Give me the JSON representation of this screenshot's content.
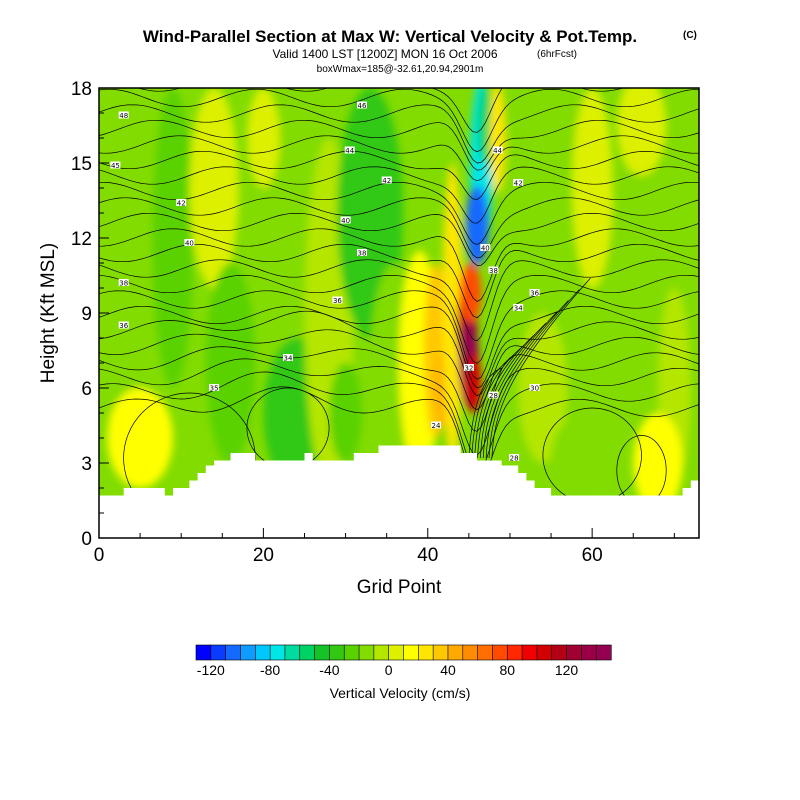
{
  "chart_data": {
    "type": "heatmap",
    "title": "Wind-Parallel Section at Max W: Vertical Velocity & Pot.Temp.",
    "copyright_mark": "(C)",
    "subtitle": "Valid 1400 LST [1200Z] MON 16 Oct 2006",
    "forecast_note": "(6hrFcst)",
    "subtitle2": "boxWmax=185@-32.61,20.94,2901m",
    "xlabel": "Grid Point",
    "ylabel": "Height (Kft MSL)",
    "xlim": [
      0,
      73
    ],
    "ylim": [
      0,
      18
    ],
    "x_ticks": [
      "0",
      "20",
      "40",
      "60"
    ],
    "x_tick_values": [
      0,
      20,
      40,
      60
    ],
    "y_ticks": [
      "0",
      "3",
      "6",
      "9",
      "12",
      "15",
      "18"
    ],
    "y_tick_values": [
      0,
      3,
      6,
      9,
      12,
      15,
      18
    ],
    "colorbar": {
      "label": "Vertical Velocity (cm/s)",
      "ticks": [
        "-120",
        "-80",
        "-40",
        "0",
        "40",
        "80",
        "120"
      ],
      "tick_values": [
        -120,
        -80,
        -40,
        0,
        40,
        80,
        120
      ],
      "range": [
        -130,
        150
      ],
      "step": 10,
      "colors": [
        "#0000ff",
        "#0a3cff",
        "#1469ff",
        "#0f9bff",
        "#00c8ff",
        "#00e6e6",
        "#00dca0",
        "#00d264",
        "#14c328",
        "#32c814",
        "#5ad200",
        "#82dc00",
        "#b4e600",
        "#dcf000",
        "#ffff00",
        "#ffe600",
        "#ffc800",
        "#ffaa00",
        "#ff8c00",
        "#ff6e00",
        "#ff4b00",
        "#ff2800",
        "#f00000",
        "#d20000",
        "#b40014",
        "#a00032",
        "#9b0046",
        "#960050"
      ]
    },
    "terrain_kft": [
      1.7,
      1.7,
      1.7,
      2.0,
      2.0,
      2.0,
      2.0,
      2.0,
      1.7,
      2.0,
      2.0,
      2.3,
      2.6,
      2.9,
      3.1,
      3.1,
      3.4,
      3.4,
      3.4,
      3.1,
      3.1,
      3.1,
      3.1,
      3.1,
      3.1,
      3.4,
      3.1,
      3.1,
      3.1,
      3.1,
      3.1,
      3.4,
      3.4,
      3.4,
      3.7,
      3.7,
      3.7,
      3.7,
      3.7,
      3.7,
      3.7,
      3.7,
      3.7,
      3.7,
      3.4,
      3.4,
      3.1,
      3.1,
      3.1,
      2.9,
      2.9,
      2.6,
      2.3,
      2.0,
      2.0,
      1.7,
      1.7,
      1.7,
      1.7,
      1.7,
      1.7,
      1.7,
      1.7,
      1.7,
      1.7,
      1.7,
      1.7,
      1.7,
      1.7,
      1.7,
      1.7,
      2.0,
      2.3,
      2.3
    ],
    "theta_contour_levels": [
      24,
      26,
      28,
      30,
      32,
      34,
      36,
      38,
      40,
      42,
      44,
      46,
      48
    ],
    "theta_contour_labels": [
      {
        "text": "48",
        "x": 3,
        "y": 16.9
      },
      {
        "text": "45",
        "x": 2,
        "y": 14.9
      },
      {
        "text": "42",
        "x": 10,
        "y": 13.4
      },
      {
        "text": "40",
        "x": 11,
        "y": 11.8
      },
      {
        "text": "38",
        "x": 3,
        "y": 10.2
      },
      {
        "text": "36",
        "x": 3,
        "y": 8.5
      },
      {
        "text": "35",
        "x": 14,
        "y": 6.0
      },
      {
        "text": "34",
        "x": 23,
        "y": 7.2
      },
      {
        "text": "36",
        "x": 29,
        "y": 9.5
      },
      {
        "text": "38",
        "x": 32,
        "y": 11.4
      },
      {
        "text": "40",
        "x": 30,
        "y": 12.7
      },
      {
        "text": "42",
        "x": 35,
        "y": 14.3
      },
      {
        "text": "44",
        "x": 30.5,
        "y": 15.5
      },
      {
        "text": "46",
        "x": 32,
        "y": 17.3
      },
      {
        "text": "44",
        "x": 48.5,
        "y": 15.5
      },
      {
        "text": "42",
        "x": 51,
        "y": 14.2
      },
      {
        "text": "40",
        "x": 47,
        "y": 11.6
      },
      {
        "text": "38",
        "x": 48,
        "y": 10.7
      },
      {
        "text": "36",
        "x": 53,
        "y": 9.8
      },
      {
        "text": "34",
        "x": 51,
        "y": 9.2
      },
      {
        "text": "30",
        "x": 53,
        "y": 6.0
      },
      {
        "text": "32",
        "x": 45,
        "y": 6.8
      },
      {
        "text": "28",
        "x": 48,
        "y": 5.7
      },
      {
        "text": "24",
        "x": 41,
        "y": 4.5
      },
      {
        "text": "28",
        "x": 50.5,
        "y": 3.2
      }
    ]
  }
}
